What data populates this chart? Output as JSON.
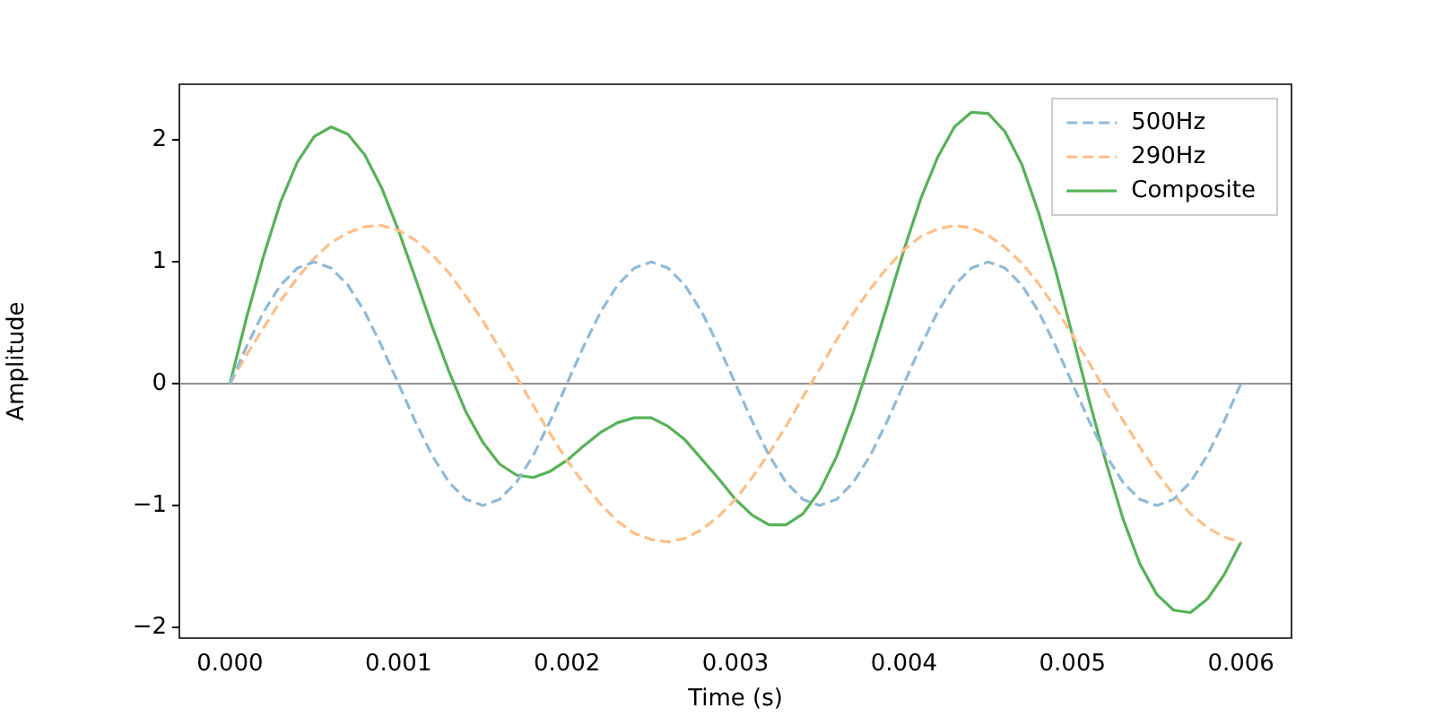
{
  "chart_data": {
    "type": "line",
    "xlabel": "Time (s)",
    "ylabel": "Amplitude",
    "x": [
      0,
      0.0001,
      0.0002,
      0.0003,
      0.0004,
      0.0005,
      0.0006,
      0.0007,
      0.0008,
      0.0009,
      0.001,
      0.0011,
      0.0012,
      0.0013,
      0.0014,
      0.0015,
      0.0016,
      0.0017,
      0.0018,
      0.0019,
      0.002,
      0.0021,
      0.0022,
      0.0023,
      0.0024,
      0.0025,
      0.0026,
      0.0027,
      0.0028,
      0.0029,
      0.003,
      0.0031,
      0.0032,
      0.0033,
      0.0034,
      0.0035,
      0.0036,
      0.0037,
      0.0038,
      0.0039,
      0.004,
      0.0041,
      0.0042,
      0.0043,
      0.0044,
      0.0045,
      0.0046,
      0.0047,
      0.0048,
      0.0049,
      0.005,
      0.0051,
      0.0052,
      0.0053,
      0.0054,
      0.0055,
      0.0056,
      0.0057,
      0.0058,
      0.0059,
      0.006
    ],
    "series": [
      {
        "name": "500Hz",
        "color": "#8fbbd9",
        "line_style": "dashed",
        "values": [
          0,
          0.31,
          0.59,
          0.81,
          0.95,
          1,
          0.95,
          0.81,
          0.59,
          0.31,
          0,
          -0.31,
          -0.59,
          -0.81,
          -0.95,
          -1,
          -0.95,
          -0.81,
          -0.59,
          -0.31,
          0,
          0.31,
          0.59,
          0.81,
          0.95,
          1,
          0.95,
          0.81,
          0.59,
          0.31,
          0,
          -0.31,
          -0.59,
          -0.81,
          -0.95,
          -1,
          -0.95,
          -0.81,
          -0.59,
          -0.31,
          0,
          0.31,
          0.59,
          0.81,
          0.95,
          1,
          0.95,
          0.81,
          0.59,
          0.31,
          0,
          -0.31,
          -0.59,
          -0.81,
          -0.95,
          -1,
          -0.95,
          -0.81,
          -0.59,
          -0.31,
          0
        ]
      },
      {
        "name": "290Hz",
        "color": "#ffbf86",
        "line_style": "dashed",
        "values": [
          0,
          0.24,
          0.46,
          0.68,
          0.87,
          1.03,
          1.16,
          1.24,
          1.29,
          1.3,
          1.26,
          1.18,
          1.06,
          0.91,
          0.72,
          0.52,
          0.29,
          0.06,
          -0.18,
          -0.41,
          -0.63,
          -0.82,
          -0.99,
          -1.13,
          -1.23,
          -1.28,
          -1.3,
          -1.27,
          -1.2,
          -1.09,
          -0.95,
          -0.77,
          -0.57,
          -0.35,
          -0.11,
          0.12,
          0.36,
          0.58,
          0.78,
          0.95,
          1.1,
          1.21,
          1.27,
          1.3,
          1.28,
          1.22,
          1.12,
          0.99,
          0.82,
          0.62,
          0.4,
          0.17,
          -0.07,
          -0.3,
          -0.52,
          -0.73,
          -0.91,
          -1.07,
          -1.18,
          -1.26,
          -1.3
        ]
      },
      {
        "name": "Composite",
        "color": "#56b356",
        "line_style": "solid",
        "values": [
          0,
          0.55,
          1.05,
          1.49,
          1.82,
          2.03,
          2.11,
          2.05,
          1.88,
          1.61,
          1.26,
          0.87,
          0.47,
          0.1,
          -0.23,
          -0.48,
          -0.66,
          -0.75,
          -0.77,
          -0.72,
          -0.63,
          -0.51,
          -0.4,
          -0.32,
          -0.28,
          -0.28,
          -0.35,
          -0.46,
          -0.62,
          -0.78,
          -0.95,
          -1.08,
          -1.16,
          -1.16,
          -1.07,
          -0.88,
          -0.6,
          -0.23,
          0.19,
          0.64,
          1.1,
          1.52,
          1.86,
          2.11,
          2.23,
          2.22,
          2.07,
          1.8,
          1.4,
          0.93,
          0.4,
          -0.14,
          -0.65,
          -1.11,
          -1.48,
          -1.73,
          -1.86,
          -1.88,
          -1.77,
          -1.57,
          -1.3
        ]
      }
    ],
    "xlim": [
      -0.0003,
      0.0063
    ],
    "ylim": [
      -2.09,
      2.46
    ],
    "xticks": [
      {
        "value": 0,
        "label": "0.000"
      },
      {
        "value": 0.001,
        "label": "0.001"
      },
      {
        "value": 0.002,
        "label": "0.002"
      },
      {
        "value": 0.003,
        "label": "0.003"
      },
      {
        "value": 0.004,
        "label": "0.004"
      },
      {
        "value": 0.005,
        "label": "0.005"
      },
      {
        "value": 0.006,
        "label": "0.006"
      }
    ],
    "yticks": [
      {
        "value": -2,
        "label": "−2"
      },
      {
        "value": -1,
        "label": "−1"
      },
      0,
      1,
      2
    ],
    "ref_lines": [
      {
        "axis": "y",
        "value": 0,
        "color": "#808080"
      }
    ],
    "grid": false,
    "legend": "top right",
    "marker": "none"
  }
}
